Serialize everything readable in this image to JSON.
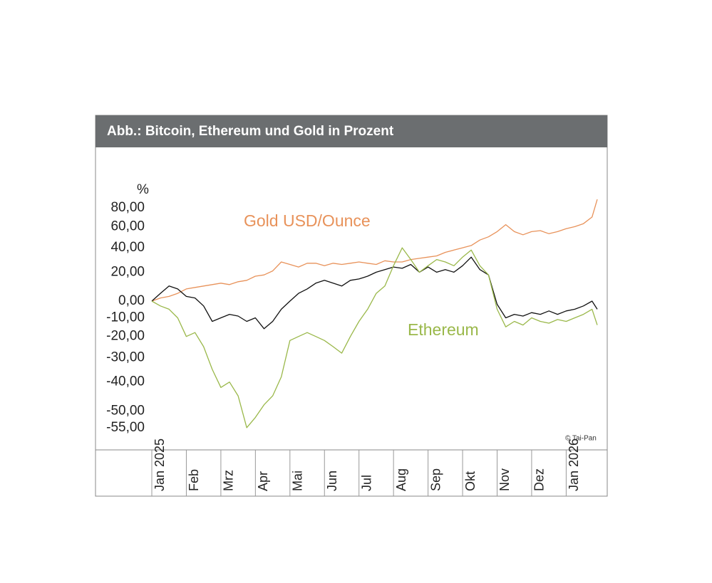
{
  "chart_data": {
    "type": "line",
    "title": "Abb.: Bitcoin, Ethereum und Gold in Prozent",
    "y_unit_label": "%",
    "annotations": [
      "Gold USD/Ounce",
      "Ethereum",
      "© Tai-Pan"
    ],
    "yscale": "log-growth",
    "ylim": [
      -60,
      150
    ],
    "yticks": [
      {
        "value": 80,
        "label": "80,00"
      },
      {
        "value": 60,
        "label": "60,00"
      },
      {
        "value": 40,
        "label": "40,00"
      },
      {
        "value": 20,
        "label": "20,00"
      },
      {
        "value": 0,
        "label": "0,00"
      },
      {
        "value": -10,
        "label": "-10,00"
      },
      {
        "value": -20,
        "label": "-20,00"
      },
      {
        "value": -30,
        "label": "-30,00"
      },
      {
        "value": -40,
        "label": "-40,00"
      },
      {
        "value": -50,
        "label": "-50,00"
      },
      {
        "value": -55,
        "label": "-55,00"
      }
    ],
    "xlim": [
      0,
      12.9
    ],
    "xticks": [
      {
        "value": 0,
        "label": "Jan 2025"
      },
      {
        "value": 1,
        "label": "Feb"
      },
      {
        "value": 2,
        "label": "Mrz"
      },
      {
        "value": 3,
        "label": "Apr"
      },
      {
        "value": 4,
        "label": "Mai"
      },
      {
        "value": 5,
        "label": "Jun"
      },
      {
        "value": 6,
        "label": "Jul"
      },
      {
        "value": 7,
        "label": "Aug"
      },
      {
        "value": 8,
        "label": "Sep"
      },
      {
        "value": 9,
        "label": "Okt"
      },
      {
        "value": 10,
        "label": "Nov"
      },
      {
        "value": 11,
        "label": "Dez"
      },
      {
        "value": 12,
        "label": "Jan 2026"
      }
    ],
    "x": [
      0,
      0.25,
      0.5,
      0.75,
      1,
      1.25,
      1.5,
      1.75,
      2,
      2.25,
      2.5,
      2.75,
      3,
      3.25,
      3.5,
      3.75,
      4,
      4.25,
      4.5,
      4.75,
      5,
      5.25,
      5.5,
      5.75,
      6,
      6.25,
      6.5,
      6.75,
      7,
      7.25,
      7.5,
      7.75,
      8,
      8.25,
      8.5,
      8.75,
      9,
      9.25,
      9.5,
      9.75,
      10,
      10.25,
      10.5,
      10.75,
      11,
      11.25,
      11.5,
      11.75,
      12,
      12.25,
      12.5,
      12.75,
      12.9
    ],
    "series": [
      {
        "name": "Gold USD/Ounce",
        "color": "#e8925a",
        "values": [
          0,
          2,
          3,
          5,
          8,
          9,
          10,
          11,
          12,
          11,
          13,
          14,
          17,
          18,
          21,
          28,
          26,
          24,
          27,
          27,
          25,
          27,
          26,
          27,
          28,
          27,
          26,
          29,
          28,
          28,
          30,
          31,
          32,
          33,
          36,
          38,
          40,
          42,
          47,
          50,
          55,
          62,
          55,
          52,
          55,
          56,
          53,
          55,
          58,
          60,
          63,
          70,
          90
        ]
      },
      {
        "color": "#111111",
        "values": [
          0,
          5,
          10,
          8,
          3,
          2,
          -3,
          -12,
          -10,
          -8,
          -9,
          -12,
          -10,
          -16,
          -12,
          -5,
          0,
          5,
          8,
          12,
          14,
          12,
          10,
          14,
          15,
          17,
          20,
          22,
          24,
          23,
          26,
          20,
          24,
          20,
          22,
          20,
          25,
          32,
          22,
          18,
          -2,
          -10,
          -8,
          -9,
          -7,
          -8,
          -6,
          -8,
          -6,
          -5,
          -3,
          0,
          -5
        ]
      },
      {
        "name": "Ethereum",
        "color": "#9ab84a",
        "values": [
          0,
          -3,
          -5,
          -10,
          -20,
          -18,
          -25,
          -35,
          -42,
          -40,
          -45,
          -55,
          -52,
          -48,
          -45,
          -38,
          -22,
          -20,
          -18,
          -20,
          -22,
          -25,
          -28,
          -20,
          -12,
          -5,
          5,
          10,
          25,
          40,
          30,
          20,
          25,
          30,
          28,
          25,
          32,
          38,
          25,
          18,
          -5,
          -15,
          -12,
          -14,
          -10,
          -12,
          -13,
          -11,
          -12,
          -10,
          -8,
          -5,
          -14
        ]
      }
    ]
  }
}
